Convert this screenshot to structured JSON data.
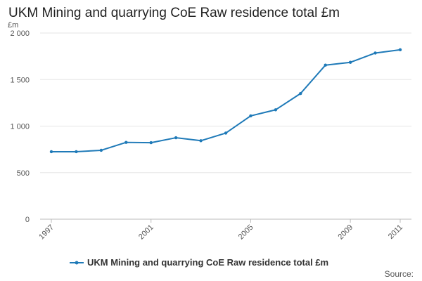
{
  "chart_data": {
    "type": "line",
    "title": "UKM Mining and quarrying CoE Raw residence total £m",
    "unit_label": "£m",
    "x": [
      1997,
      1998,
      1999,
      2000,
      2001,
      2002,
      2003,
      2004,
      2005,
      2006,
      2007,
      2008,
      2009,
      2010,
      2011
    ],
    "x_tick_labels": [
      "1997",
      "2001",
      "2005",
      "2009",
      "2011"
    ],
    "x_tick_values": [
      1997,
      2001,
      2005,
      2009,
      2011
    ],
    "series": [
      {
        "name": "UKM Mining and quarrying CoE Raw residence total £m",
        "values": [
          725,
          725,
          740,
          825,
          822,
          875,
          843,
          925,
          1110,
          1175,
          1350,
          1655,
          1685,
          1785,
          1820
        ]
      }
    ],
    "y_ticks": [
      0,
      500,
      1000,
      1500,
      2000
    ],
    "y_tick_labels": [
      "0",
      "500",
      "1 000",
      "1 500",
      "2 000"
    ],
    "ylim": [
      0,
      2000
    ],
    "xlabel": "",
    "ylabel": "£m",
    "legend_position": "bottom",
    "line_color": "#1f7ab8",
    "grid": true
  },
  "source_label": "Source:"
}
